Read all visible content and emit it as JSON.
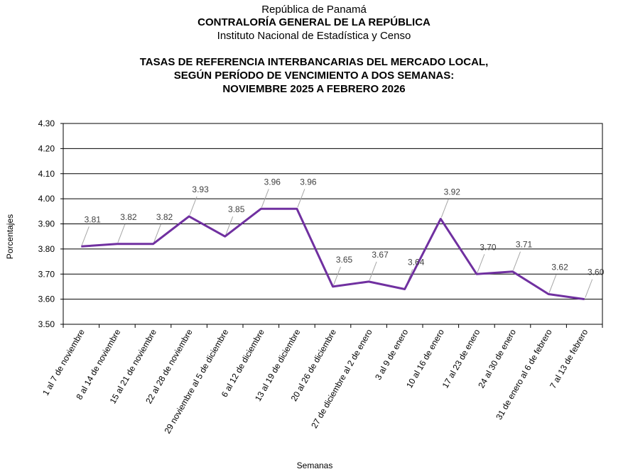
{
  "header": {
    "republic": "República de Panamá",
    "office": "CONTRALORÍA GENERAL DE LA REPÚBLICA",
    "institute": "Instituto  Nacional de Estadística  y  Censo"
  },
  "title_lines": [
    "TASAS DE REFERENCIA INTERBANCARIAS DEL MERCADO LOCAL,",
    "SEGÚN PERÍODO DE VENCIMIENTO A DOS SEMANAS:",
    "NOVIEMBRE 2025 A FEBRERO 2026"
  ],
  "chart_data": {
    "type": "line",
    "title": "TASAS DE REFERENCIA INTERBANCARIAS DEL MERCADO LOCAL, SEGÚN PERÍODO DE VENCIMIENTO A DOS SEMANAS: NOVIEMBRE 2025 A FEBRERO 2026",
    "xlabel": "Semanas",
    "ylabel": "Porcentajes",
    "ylim": [
      3.5,
      4.3
    ],
    "yticks": [
      "3.50",
      "3.60",
      "3.70",
      "3.80",
      "3.90",
      "4.00",
      "4.10",
      "4.20",
      "4.30"
    ],
    "grid": true,
    "line_color": "#7030a0",
    "categories": [
      "1 al 7 de noviembre",
      "8 al 14 de noviembre",
      "15 al 21 de noviembre",
      "22 al 28 de noviembre",
      "29 noviembre al 5 de diciembre",
      "6 al 12 de diciembre",
      "13 al 19 de diciembre",
      "20 al 26 de diciembre",
      "27 de diciembre al 2 de enero",
      "3 al 9 de enero",
      "10 al 16 de enero",
      "17 al 23 de enero",
      "24 al 30 de enero",
      "31 de enero al 6 de febrero",
      "7 al 13 de febrero"
    ],
    "values": [
      3.81,
      3.82,
      3.82,
      3.93,
      3.85,
      3.96,
      3.96,
      3.65,
      3.67,
      3.64,
      3.92,
      3.7,
      3.71,
      3.62,
      3.6
    ],
    "data_labels": [
      "3.81",
      "3.82",
      "3.82",
      "3.93",
      "3.85",
      "3.96",
      "3.96",
      "3.65",
      "3.67",
      "3.64",
      "3.92",
      "3.70",
      "3.71",
      "3.62",
      "3.60"
    ]
  }
}
